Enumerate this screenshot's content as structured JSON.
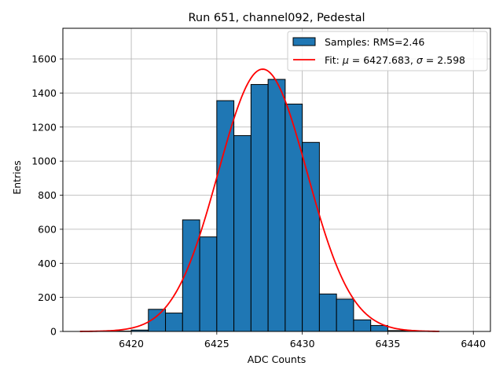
{
  "chart_data": {
    "type": "bar",
    "title": "Run 651, channel092, Pedestal",
    "xlabel": "ADC Counts",
    "ylabel": "Entries",
    "xlim": [
      6416,
      6441
    ],
    "ylim": [
      0,
      1780
    ],
    "grid": true,
    "legend_position": "top-right",
    "x_ticks": [
      6420,
      6425,
      6430,
      6435,
      6440
    ],
    "y_ticks": [
      0,
      200,
      400,
      600,
      800,
      1000,
      1200,
      1400,
      1600
    ],
    "histogram": {
      "name": "Samples: RMS=2.46",
      "color": "#1f77b4",
      "bin_width": 1,
      "bin_starts": [
        6418,
        6419,
        6420,
        6421,
        6422,
        6423,
        6424,
        6425,
        6426,
        6427,
        6428,
        6429,
        6430,
        6431,
        6432,
        6433,
        6434,
        6435,
        6436,
        6437
      ],
      "counts": [
        1,
        2,
        8,
        130,
        108,
        655,
        555,
        1355,
        1150,
        1450,
        1480,
        1335,
        1110,
        220,
        190,
        68,
        35,
        5,
        2,
        1
      ]
    },
    "fit": {
      "label_prefix": "Fit: ",
      "mu_symbol": "μ",
      "mu_value": "6427.683",
      "sigma_symbol": "σ",
      "sigma_value": "2.598",
      "color": "#ff0000",
      "mu": 6427.683,
      "sigma": 2.598,
      "peak": 1540,
      "x_range": [
        6417,
        6438
      ]
    }
  }
}
